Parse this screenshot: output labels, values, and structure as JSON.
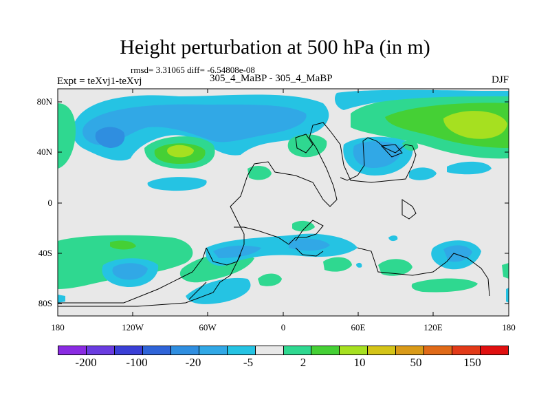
{
  "title": "Height perturbation at 500 hPa (in m)",
  "stats": "rmsd= 3.31065 diff= -6.54808e-08",
  "experiment": "Expt = teXvj1-teXvj",
  "center_label": "305_4_MaBP - 305_4_MaBP",
  "season": "DJF",
  "lat_labels": [
    "80N",
    "40N",
    "0",
    "40S",
    "80S"
  ],
  "lon_labels": [
    "180",
    "120W",
    "60W",
    "0",
    "60E",
    "120E",
    "180"
  ],
  "colorbar": {
    "colors": [
      "#8a2be2",
      "#6a3ce0",
      "#3a3fd6",
      "#2f64d8",
      "#2f8ee0",
      "#31a8e6",
      "#25c3e3",
      "#e8e8e8",
      "#2fd890",
      "#45d035",
      "#a6e020",
      "#d4c418",
      "#d99a18",
      "#e06a18",
      "#e23a18",
      "#e01010"
    ],
    "labels": [
      "-200",
      "-100",
      "-20",
      "-5",
      "2",
      "10",
      "50",
      "150"
    ]
  },
  "map_colors": {
    "background": "#e8e8e8",
    "blue_light": "#25c3e3",
    "blue_mid": "#31a8e6",
    "blue_dark": "#2f8ee0",
    "green": "#2fd890",
    "green_mid": "#45d035",
    "yellow_green": "#a6e020"
  }
}
